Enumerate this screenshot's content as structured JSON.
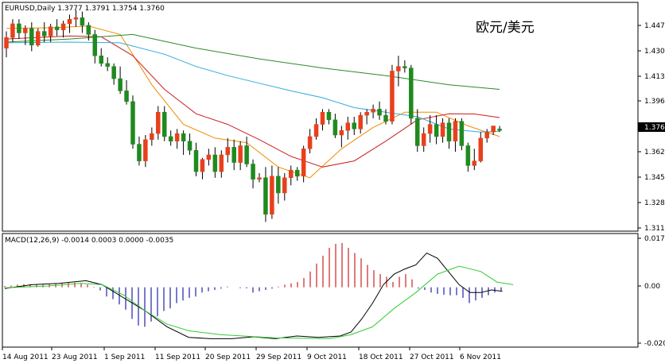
{
  "header": {
    "symbol_line": "EURUSD,Daily  1.3777 1.3791 1.3754 1.3760",
    "pair_name": "欧元/美元"
  },
  "price_panel": {
    "y_ticks": [
      "1.4470",
      "1.4300",
      "1.4130",
      "1.3960",
      "1.3620",
      "1.3450",
      "1.3280",
      "1.3110"
    ],
    "current_price": "1.3760"
  },
  "macd_panel": {
    "label": "MACD(12,26,9) -0.0014 0.0003 0.0000 -0.0035",
    "y_ticks": [
      "0.0176",
      "0.00",
      "-0.0202"
    ]
  },
  "x_ticks": [
    "14 Aug 2011",
    "23 Aug 2011",
    "1 Sep 2011",
    "11 Sep 2011",
    "20 Sep 2011",
    "29 Sep 2011",
    "9 Oct 2011",
    "18 Oct 2011",
    "27 Oct 2011",
    "6 Nov 2011"
  ],
  "colors": {
    "bull": "#e8401c",
    "bear": "#1f8a1f",
    "ma_fast": "#f08c00",
    "ma_mid": "#cc1f1f",
    "ma_slow": "#33aadd",
    "ma_long": "#2b8a2b",
    "macd_line": "#000000",
    "signal_line": "#33cc33",
    "hist_pos": "#cc2222",
    "hist_neg": "#2222aa"
  },
  "chart_data": {
    "type": "candlestick",
    "symbol": "EURUSD",
    "timeframe": "Daily",
    "ylim": [
      1.311,
      1.459
    ],
    "candles": [
      [
        1.43,
        1.441,
        1.424,
        1.437
      ],
      [
        1.437,
        1.449,
        1.434,
        1.446
      ],
      [
        1.446,
        1.449,
        1.436,
        1.44
      ],
      [
        1.44,
        1.445,
        1.432,
        1.443
      ],
      [
        1.443,
        1.447,
        1.428,
        1.432
      ],
      [
        1.432,
        1.443,
        1.431,
        1.441
      ],
      [
        1.441,
        1.447,
        1.434,
        1.438
      ],
      [
        1.438,
        1.446,
        1.434,
        1.444
      ],
      [
        1.444,
        1.449,
        1.438,
        1.442
      ],
      [
        1.442,
        1.448,
        1.437,
        1.446
      ],
      [
        1.446,
        1.452,
        1.44,
        1.449
      ],
      [
        1.449,
        1.455,
        1.444,
        1.45
      ],
      [
        1.45,
        1.454,
        1.44,
        1.445
      ],
      [
        1.445,
        1.447,
        1.435,
        1.439
      ],
      [
        1.439,
        1.442,
        1.42,
        1.425
      ],
      [
        1.425,
        1.43,
        1.418,
        1.42
      ],
      [
        1.42,
        1.424,
        1.415,
        1.418
      ],
      [
        1.418,
        1.42,
        1.406,
        1.41
      ],
      [
        1.41,
        1.418,
        1.4,
        1.402
      ],
      [
        1.402,
        1.409,
        1.393,
        1.395
      ],
      [
        1.395,
        1.399,
        1.364,
        1.367
      ],
      [
        1.367,
        1.372,
        1.353,
        1.356
      ],
      [
        1.356,
        1.373,
        1.352,
        1.37
      ],
      [
        1.37,
        1.378,
        1.366,
        1.374
      ],
      [
        1.374,
        1.392,
        1.37,
        1.388
      ],
      [
        1.388,
        1.392,
        1.369,
        1.372
      ],
      [
        1.372,
        1.376,
        1.366,
        1.369
      ],
      [
        1.369,
        1.377,
        1.364,
        1.374
      ],
      [
        1.374,
        1.376,
        1.36,
        1.369
      ],
      [
        1.369,
        1.374,
        1.36,
        1.363
      ],
      [
        1.363,
        1.368,
        1.346,
        1.349
      ],
      [
        1.349,
        1.358,
        1.344,
        1.357
      ],
      [
        1.357,
        1.364,
        1.353,
        1.36
      ],
      [
        1.36,
        1.365,
        1.345,
        1.349
      ],
      [
        1.349,
        1.363,
        1.345,
        1.36
      ],
      [
        1.36,
        1.371,
        1.355,
        1.365
      ],
      [
        1.365,
        1.37,
        1.35,
        1.355
      ],
      [
        1.355,
        1.369,
        1.35,
        1.366
      ],
      [
        1.366,
        1.372,
        1.352,
        1.354
      ],
      [
        1.354,
        1.357,
        1.338,
        1.344
      ],
      [
        1.344,
        1.348,
        1.342,
        1.345
      ],
      [
        1.345,
        1.352,
        1.316,
        1.321
      ],
      [
        1.321,
        1.353,
        1.318,
        1.346
      ],
      [
        1.346,
        1.352,
        1.328,
        1.335
      ],
      [
        1.335,
        1.348,
        1.33,
        1.345
      ],
      [
        1.345,
        1.353,
        1.34,
        1.35
      ],
      [
        1.35,
        1.352,
        1.343,
        1.346
      ],
      [
        1.346,
        1.366,
        1.342,
        1.364
      ],
      [
        1.364,
        1.377,
        1.361,
        1.372
      ],
      [
        1.372,
        1.384,
        1.37,
        1.38
      ],
      [
        1.38,
        1.39,
        1.376,
        1.388
      ],
      [
        1.388,
        1.39,
        1.38,
        1.383
      ],
      [
        1.383,
        1.387,
        1.371,
        1.373
      ],
      [
        1.373,
        1.379,
        1.365,
        1.376
      ],
      [
        1.376,
        1.385,
        1.37,
        1.381
      ],
      [
        1.381,
        1.385,
        1.373,
        1.377
      ],
      [
        1.377,
        1.388,
        1.374,
        1.386
      ],
      [
        1.386,
        1.39,
        1.38,
        1.388
      ],
      [
        1.388,
        1.393,
        1.384,
        1.39
      ],
      [
        1.39,
        1.395,
        1.383,
        1.386
      ],
      [
        1.386,
        1.39,
        1.38,
        1.382
      ],
      [
        1.382,
        1.419,
        1.38,
        1.415
      ],
      [
        1.415,
        1.425,
        1.405,
        1.418
      ],
      [
        1.418,
        1.422,
        1.414,
        1.417
      ],
      [
        1.417,
        1.419,
        1.38,
        1.384
      ],
      [
        1.384,
        1.39,
        1.362,
        1.366
      ],
      [
        1.366,
        1.378,
        1.362,
        1.374
      ],
      [
        1.374,
        1.386,
        1.368,
        1.38
      ],
      [
        1.38,
        1.386,
        1.367,
        1.372
      ],
      [
        1.372,
        1.384,
        1.368,
        1.381
      ],
      [
        1.381,
        1.384,
        1.364,
        1.369
      ],
      [
        1.369,
        1.384,
        1.362,
        1.382
      ],
      [
        1.382,
        1.384,
        1.363,
        1.366
      ],
      [
        1.366,
        1.368,
        1.349,
        1.353
      ],
      [
        1.353,
        1.364,
        1.35,
        1.356
      ],
      [
        1.356,
        1.375,
        1.355,
        1.371
      ],
      [
        1.371,
        1.377,
        1.368,
        1.375
      ],
      [
        1.375,
        1.379,
        1.373,
        1.379
      ],
      [
        1.377,
        1.379,
        1.375,
        1.376
      ]
    ],
    "moving_averages": [
      {
        "points": [
          [
            0,
            1.443
          ],
          [
            8,
            1.4435
          ],
          [
            13,
            1.4445
          ],
          [
            18,
            1.439
          ],
          [
            23,
            1.406
          ],
          [
            28,
            1.38
          ],
          [
            33,
            1.371
          ],
          [
            38,
            1.368
          ],
          [
            43,
            1.352
          ],
          [
            48,
            1.345
          ],
          [
            53,
            1.364
          ],
          [
            58,
            1.378
          ],
          [
            63,
            1.388
          ],
          [
            68,
            1.388
          ],
          [
            73,
            1.379
          ],
          [
            78,
            1.372
          ]
        ]
      },
      {
        "points": [
          [
            0,
            1.436
          ],
          [
            10,
            1.438
          ],
          [
            15,
            1.4375
          ],
          [
            20,
            1.425
          ],
          [
            25,
            1.403
          ],
          [
            30,
            1.387
          ],
          [
            35,
            1.38
          ],
          [
            40,
            1.37
          ],
          [
            45,
            1.359
          ],
          [
            50,
            1.352
          ],
          [
            55,
            1.356
          ],
          [
            60,
            1.369
          ],
          [
            65,
            1.383
          ],
          [
            70,
            1.387
          ],
          [
            74,
            1.3868
          ],
          [
            78,
            1.3845
          ]
        ]
      },
      {
        "points": [
          [
            0,
            1.4335
          ],
          [
            10,
            1.434
          ],
          [
            18,
            1.4335
          ],
          [
            25,
            1.426
          ],
          [
            30,
            1.418
          ],
          [
            35,
            1.412
          ],
          [
            40,
            1.407
          ],
          [
            45,
            1.402
          ],
          [
            50,
            1.3975
          ],
          [
            55,
            1.391
          ],
          [
            60,
            1.388
          ],
          [
            65,
            1.385
          ],
          [
            70,
            1.377
          ],
          [
            75,
            1.375
          ],
          [
            78,
            1.3755
          ]
        ]
      },
      {
        "points": [
          [
            0,
            1.434
          ],
          [
            10,
            1.436
          ],
          [
            20,
            1.439
          ],
          [
            30,
            1.43
          ],
          [
            40,
            1.423
          ],
          [
            50,
            1.417
          ],
          [
            60,
            1.412
          ],
          [
            70,
            1.406
          ],
          [
            78,
            1.403
          ]
        ]
      }
    ],
    "macd": {
      "ylim": [
        -0.0212,
        0.0186
      ],
      "histogram": [
        0.0005,
        0.0007,
        0.001,
        0.0012,
        0.0012,
        0.0011,
        0.001,
        0.0011,
        0.0013,
        0.0015,
        0.0017,
        0.0018,
        0.0016,
        0.001,
        0.0002,
        -0.0012,
        -0.0035,
        -0.0045,
        -0.0065,
        -0.0085,
        -0.012,
        -0.0145,
        -0.015,
        -0.013,
        -0.011,
        -0.009,
        -0.008,
        -0.006,
        -0.005,
        -0.004,
        -0.0035,
        -0.002,
        -0.0015,
        -0.001,
        -0.0005,
        0.0003,
        0.0,
        -0.0003,
        -0.0004,
        -0.002,
        -0.0015,
        -0.001,
        -0.0005,
        0.0003,
        0.001,
        0.0015,
        0.002,
        0.0035,
        0.006,
        0.009,
        0.012,
        0.015,
        0.0165,
        0.0168,
        0.015,
        0.013,
        0.011,
        0.0085,
        0.0065,
        0.005,
        0.004,
        0.002,
        0.004,
        0.005,
        0.003,
        -0.0005,
        -0.001,
        -0.002,
        -0.0025,
        -0.0028,
        -0.003,
        -0.003,
        -0.004,
        -0.006,
        -0.005,
        -0.004,
        -0.003,
        -0.002,
        -0.0015
      ],
      "macd_line": [
        [
          0,
          -0.0005
        ],
        [
          5,
          0.001
        ],
        [
          10,
          0.0015
        ],
        [
          15,
          0.0025
        ],
        [
          18,
          0.001
        ],
        [
          22,
          -0.004
        ],
        [
          26,
          -0.009
        ],
        [
          30,
          -0.015
        ],
        [
          34,
          -0.019
        ],
        [
          38,
          -0.0195
        ],
        [
          42,
          -0.0195
        ],
        [
          46,
          -0.0188
        ],
        [
          50,
          -0.0195
        ],
        [
          54,
          -0.0185
        ],
        [
          58,
          -0.019
        ],
        [
          62,
          -0.0185
        ],
        [
          64,
          -0.017
        ],
        [
          66,
          -0.012
        ],
        [
          68,
          -0.006
        ],
        [
          70,
          0.001
        ],
        [
          72,
          0.005
        ],
        [
          74,
          0.007
        ],
        [
          76,
          0.0085
        ],
        [
          78,
          0.013
        ],
        [
          80,
          0.011
        ],
        [
          82,
          0.006
        ],
        [
          84,
          0.001
        ],
        [
          86,
          -0.002
        ],
        [
          88,
          -0.002
        ],
        [
          90,
          -0.001
        ],
        [
          92,
          -0.0015
        ]
      ],
      "signal_line": [
        [
          0,
          -0.0002
        ],
        [
          8,
          0.0005
        ],
        [
          14,
          0.0015
        ],
        [
          18,
          0.001
        ],
        [
          22,
          -0.003
        ],
        [
          26,
          -0.009
        ],
        [
          30,
          -0.014
        ],
        [
          34,
          -0.0165
        ],
        [
          40,
          -0.018
        ],
        [
          50,
          -0.0192
        ],
        [
          60,
          -0.0195
        ],
        [
          64,
          -0.018
        ],
        [
          68,
          -0.015
        ],
        [
          72,
          -0.008
        ],
        [
          76,
          -0.002
        ],
        [
          80,
          0.005
        ],
        [
          84,
          0.008
        ],
        [
          88,
          0.006
        ],
        [
          91,
          0.002
        ],
        [
          94,
          0.001
        ]
      ]
    }
  }
}
